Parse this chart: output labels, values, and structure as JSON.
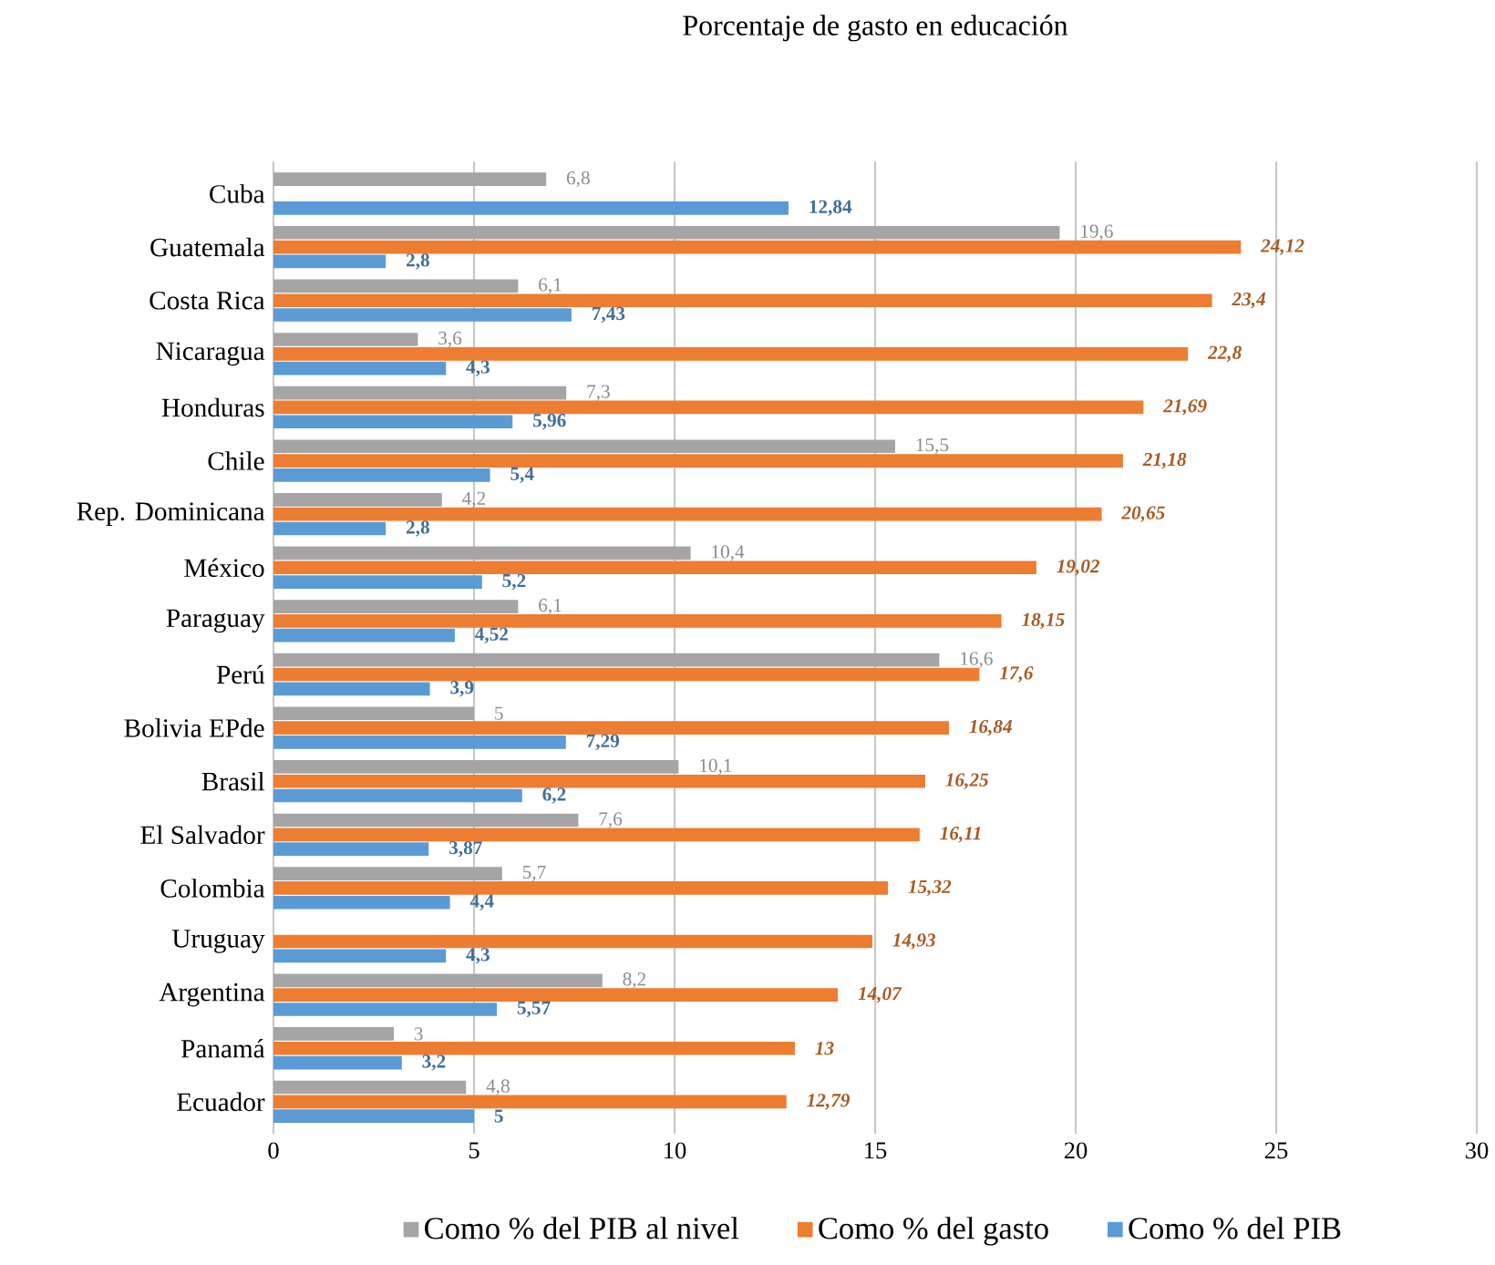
{
  "chart_data": {
    "type": "bar",
    "orientation": "horizontal",
    "title": "Porcentaje de gasto en educación",
    "categories": [
      "Cuba",
      "Guatemala",
      "Costa Rica",
      "Nicaragua",
      "Honduras",
      "Chile",
      "Rep. Dominicana",
      "México",
      "Paraguay",
      "Perú",
      "Bolivia EPde",
      "Brasil",
      "El Salvador",
      "Colombia",
      "Uruguay",
      "Argentina",
      "Panamá",
      "Ecuador"
    ],
    "series": [
      {
        "name": "Como % del PIB al nivel",
        "color": "#a5a5a5",
        "values": [
          6.8,
          19.6,
          6.1,
          3.6,
          7.3,
          15.5,
          4.2,
          10.4,
          6.1,
          16.6,
          5,
          10.1,
          7.6,
          5.7,
          null,
          8.2,
          3,
          4.8
        ],
        "value_labels": [
          "6,8",
          "19,6",
          "6,1",
          "3,6",
          "7,3",
          "15,5",
          "4,2",
          "10,4",
          "6,1",
          "16,6",
          "5",
          "10,1",
          "7,6",
          "5,7",
          null,
          "8,2",
          "3",
          "4,8"
        ]
      },
      {
        "name": "Como % del gasto",
        "color": "#ed7d31",
        "values": [
          null,
          24.12,
          23.4,
          22.8,
          21.69,
          21.18,
          20.65,
          19.02,
          18.15,
          17.6,
          16.84,
          16.25,
          16.11,
          15.32,
          14.93,
          14.07,
          13,
          12.79
        ],
        "value_labels": [
          null,
          "24,12",
          "23,4",
          "22,8",
          "21,69",
          "21,18",
          "20,65",
          "19,02",
          "18,15",
          "17,6",
          "16,84",
          "16,25",
          "16,11",
          "15,32",
          "14,93",
          "14,07",
          "13",
          "12,79"
        ]
      },
      {
        "name": "Como % del PIB",
        "color": "#5b9bd5",
        "values": [
          12.84,
          2.8,
          7.43,
          4.3,
          5.96,
          5.4,
          2.8,
          5.2,
          4.52,
          3.9,
          7.29,
          6.2,
          3.87,
          4.4,
          4.3,
          5.57,
          3.2,
          5
        ],
        "value_labels": [
          "12,84",
          "2,8",
          "7,43",
          "4,3",
          "5,96",
          "5,4",
          "2,8",
          "5,2",
          "4,52",
          "3,9",
          "7,29",
          "6,2",
          "3,87",
          "4,4",
          "4,3",
          "5,57",
          "3,2",
          "5"
        ]
      }
    ],
    "xlim": [
      0,
      30
    ],
    "xticks": [
      0,
      5,
      10,
      15,
      20,
      25,
      30
    ],
    "grid": "x",
    "legend": "bottom"
  }
}
